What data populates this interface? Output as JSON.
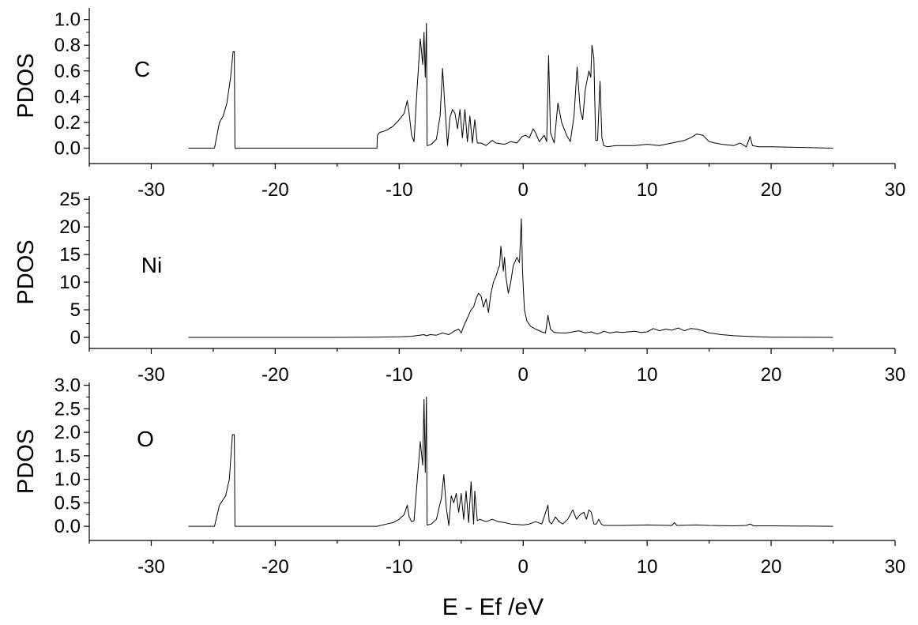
{
  "chart_data": {
    "type": "line",
    "xlabel": "E - Ef /eV",
    "xlim": [
      -35,
      30
    ],
    "x_ticks": [
      -30,
      -20,
      -10,
      0,
      10,
      20,
      30
    ],
    "panels": [
      {
        "label": "C",
        "ylabel": "PDOS",
        "ylim": [
          -0.12,
          1.09
        ],
        "y_ticks": [
          0.0,
          0.2,
          0.4,
          0.6,
          0.8,
          1.0
        ],
        "y_tick_labels": [
          "0.0",
          "0.2",
          "0.4",
          "0.6",
          "0.8",
          "1.0"
        ],
        "x_tick_labels": [
          "-30",
          "-20",
          "-10",
          "0",
          "10",
          "20",
          "30"
        ],
        "series": [
          {
            "x": [
              -27.0,
              -24.9,
              -24.5,
              -24.2,
              -23.9,
              -23.6,
              -23.4,
              -23.3,
              -23.25,
              -20.0,
              -15.0,
              -11.8,
              -11.75,
              -11.6,
              -11.3,
              -11.0,
              -10.5,
              -10.0,
              -9.6,
              -9.35,
              -9.2,
              -9.0,
              -8.8,
              -8.6,
              -8.3,
              -8.1,
              -8.0,
              -7.9,
              -7.8,
              -7.75,
              -7.7,
              -7.4,
              -7.0,
              -6.7,
              -6.5,
              -6.3,
              -6.1,
              -5.9,
              -5.7,
              -5.5,
              -5.3,
              -5.1,
              -4.9,
              -4.7,
              -4.5,
              -4.3,
              -4.1,
              -3.9,
              -3.7,
              -3.4,
              -3.0,
              -2.5,
              -2.2,
              -1.5,
              -1.0,
              -0.5,
              -0.1,
              0.2,
              0.5,
              0.8,
              1.0,
              1.3,
              1.7,
              1.9,
              2.05,
              2.2,
              2.5,
              2.8,
              3.1,
              3.5,
              3.8,
              4.1,
              4.35,
              4.6,
              4.8,
              5.0,
              5.3,
              5.45,
              5.55,
              5.7,
              5.85,
              6.0,
              6.2,
              6.35,
              6.5,
              6.8,
              7.5,
              9.0,
              10.0,
              11.0,
              12.0,
              13.0,
              13.5,
              14.0,
              14.5,
              15.0,
              15.5,
              16.0,
              17.0,
              17.5,
              18.0,
              18.3,
              18.5,
              19.0,
              20.0,
              25.0
            ],
            "y": [
              0.0,
              0.0,
              0.2,
              0.25,
              0.35,
              0.55,
              0.75,
              0.75,
              0.0,
              0.0,
              0.0,
              0.0,
              0.1,
              0.12,
              0.13,
              0.14,
              0.17,
              0.22,
              0.27,
              0.37,
              0.27,
              0.1,
              0.05,
              0.4,
              0.85,
              0.65,
              0.9,
              0.55,
              0.97,
              0.02,
              0.02,
              0.03,
              0.07,
              0.25,
              0.62,
              0.3,
              0.02,
              0.24,
              0.3,
              0.27,
              0.15,
              0.3,
              0.08,
              0.3,
              0.05,
              0.25,
              0.04,
              0.22,
              0.04,
              0.04,
              0.02,
              0.06,
              0.04,
              0.03,
              0.05,
              0.04,
              0.09,
              0.1,
              0.08,
              0.15,
              0.12,
              0.05,
              0.1,
              0.05,
              0.72,
              0.12,
              0.04,
              0.35,
              0.2,
              0.1,
              0.05,
              0.25,
              0.63,
              0.3,
              0.22,
              0.45,
              0.6,
              0.55,
              0.8,
              0.7,
              0.06,
              0.06,
              0.52,
              0.08,
              0.02,
              0.01,
              0.02,
              0.02,
              0.03,
              0.02,
              0.04,
              0.06,
              0.08,
              0.11,
              0.1,
              0.05,
              0.04,
              0.03,
              0.02,
              0.04,
              0.01,
              0.09,
              0.02,
              0.01,
              0.01,
              0.0
            ]
          }
        ]
      },
      {
        "label": "Ni",
        "ylabel": "PDOS",
        "ylim": [
          -2.0,
          25.6
        ],
        "y_ticks": [
          0,
          5,
          10,
          15,
          20,
          25
        ],
        "y_tick_labels": [
          "0",
          "5",
          "10",
          "15",
          "20",
          "25"
        ],
        "x_tick_labels": [
          "-30",
          "-20",
          "-10",
          "0",
          "10",
          "20",
          "30"
        ],
        "series": [
          {
            "x": [
              -27.0,
              -15.0,
              -12.0,
              -10.0,
              -9.0,
              -8.0,
              -7.8,
              -7.5,
              -7.0,
              -6.5,
              -6.0,
              -5.5,
              -5.2,
              -5.0,
              -4.8,
              -4.5,
              -4.2,
              -4.0,
              -3.8,
              -3.6,
              -3.4,
              -3.2,
              -3.0,
              -2.8,
              -2.6,
              -2.4,
              -2.2,
              -2.0,
              -1.9,
              -1.8,
              -1.6,
              -1.5,
              -1.4,
              -1.2,
              -1.0,
              -0.8,
              -0.5,
              -0.3,
              -0.15,
              -0.05,
              0.1,
              0.3,
              0.6,
              1.0,
              1.5,
              1.8,
              2.0,
              2.2,
              2.5,
              3.0,
              3.5,
              4.0,
              4.5,
              5.0,
              5.5,
              6.0,
              6.5,
              7.0,
              7.5,
              8.0,
              8.5,
              9.0,
              9.5,
              10.0,
              10.5,
              11.0,
              11.5,
              12.0,
              12.5,
              13.0,
              13.5,
              14.0,
              14.5,
              15.0,
              16.0,
              17.0,
              18.0,
              19.0,
              20.0,
              22.0,
              25.0
            ],
            "y": [
              0.0,
              0.0,
              0.05,
              0.1,
              0.2,
              0.5,
              0.3,
              0.5,
              0.4,
              0.8,
              0.5,
              1.2,
              1.5,
              0.8,
              2.0,
              3.5,
              5.0,
              5.5,
              7.0,
              8.0,
              7.5,
              5.5,
              7.0,
              4.5,
              8.0,
              10.0,
              11.0,
              12.5,
              13.0,
              16.5,
              12.0,
              14.5,
              11.0,
              8.0,
              10.0,
              13.0,
              14.5,
              13.5,
              21.5,
              12.0,
              5.0,
              3.0,
              2.0,
              1.5,
              1.0,
              0.8,
              4.0,
              1.5,
              0.9,
              0.8,
              0.8,
              1.0,
              1.2,
              0.8,
              1.0,
              0.6,
              1.1,
              0.8,
              1.0,
              0.9,
              1.0,
              1.1,
              0.9,
              1.0,
              1.6,
              1.2,
              1.5,
              1.3,
              1.7,
              1.2,
              1.6,
              1.5,
              1.2,
              0.8,
              0.5,
              0.3,
              0.2,
              0.1,
              0.05,
              0.02,
              0.0
            ]
          }
        ]
      },
      {
        "label": "O",
        "ylabel": "PDOS",
        "ylim": [
          -0.3,
          3.06
        ],
        "y_ticks": [
          0.0,
          0.5,
          1.0,
          1.5,
          2.0,
          2.5,
          3.0
        ],
        "y_tick_labels": [
          "0.0",
          "0.5",
          "1.0",
          "1.5",
          "2.0",
          "2.5",
          "3.0"
        ],
        "x_tick_labels": [
          "-30",
          "-20",
          "-10",
          "0",
          "10",
          "20",
          "30"
        ],
        "series": [
          {
            "x": [
              -27.0,
              -24.9,
              -24.5,
              -24.0,
              -23.7,
              -23.45,
              -23.3,
              -23.25,
              -20.0,
              -15.0,
              -11.8,
              -11.0,
              -10.5,
              -10.0,
              -9.6,
              -9.35,
              -9.2,
              -9.0,
              -8.8,
              -8.6,
              -8.3,
              -8.1,
              -8.0,
              -7.9,
              -7.8,
              -7.75,
              -7.7,
              -7.4,
              -7.0,
              -6.6,
              -6.4,
              -6.2,
              -6.0,
              -5.8,
              -5.6,
              -5.4,
              -5.2,
              -5.0,
              -4.8,
              -4.6,
              -4.4,
              -4.2,
              -4.0,
              -3.9,
              -3.7,
              -3.5,
              -3.0,
              -2.5,
              -2.0,
              -1.5,
              -1.0,
              -0.5,
              0.0,
              0.5,
              1.0,
              1.5,
              2.0,
              2.1,
              2.3,
              2.6,
              2.9,
              3.2,
              3.6,
              4.0,
              4.3,
              4.6,
              4.9,
              5.1,
              5.3,
              5.5,
              5.7,
              5.9,
              6.1,
              6.3,
              6.5,
              7.0,
              8.0,
              10.0,
              12.0,
              12.2,
              12.4,
              14.0,
              15.0,
              17.0,
              18.0,
              18.3,
              18.6,
              20.0,
              25.0
            ],
            "y": [
              0.0,
              0.0,
              0.45,
              0.65,
              1.0,
              1.95,
              1.95,
              0.0,
              0.0,
              0.0,
              0.0,
              0.05,
              0.08,
              0.15,
              0.25,
              0.45,
              0.2,
              0.1,
              0.12,
              0.8,
              1.8,
              1.3,
              2.7,
              1.15,
              2.75,
              0.03,
              0.03,
              0.05,
              0.15,
              0.6,
              1.1,
              0.4,
              0.02,
              0.65,
              0.5,
              0.7,
              0.3,
              0.7,
              0.15,
              0.75,
              0.08,
              0.95,
              0.05,
              0.75,
              0.12,
              0.15,
              0.1,
              0.15,
              0.1,
              0.08,
              0.05,
              0.04,
              0.03,
              0.05,
              0.1,
              0.05,
              0.45,
              0.1,
              0.05,
              0.2,
              0.1,
              0.05,
              0.15,
              0.35,
              0.15,
              0.25,
              0.3,
              0.15,
              0.35,
              0.3,
              0.05,
              0.05,
              0.15,
              0.05,
              0.02,
              0.02,
              0.02,
              0.03,
              0.02,
              0.08,
              0.02,
              0.03,
              0.02,
              0.01,
              0.02,
              0.05,
              0.01,
              0.01,
              0.0
            ]
          }
        ]
      }
    ]
  }
}
